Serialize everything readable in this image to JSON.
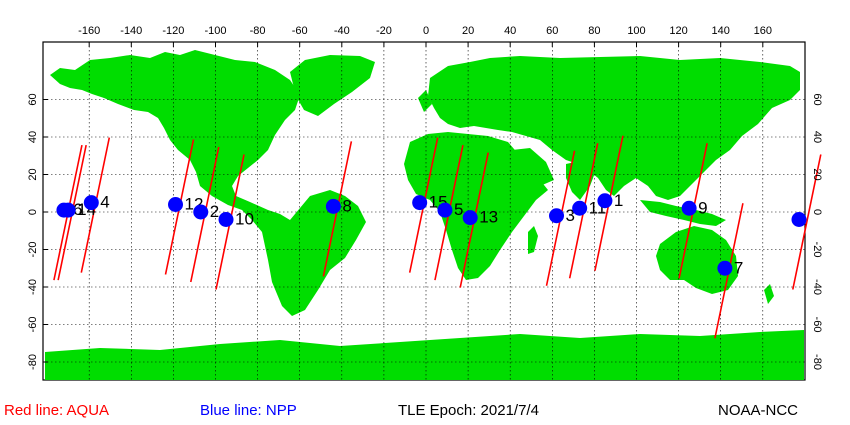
{
  "legend": {
    "aqua": "Red line: AQUA",
    "npp": "Blue line: NPP"
  },
  "tle_epoch": "TLE Epoch: 2021/7/4",
  "credit": "NOAA-NCC",
  "colors": {
    "ocean": "#ffffff",
    "land": "#00dd00",
    "aqua_track": "#ff0000",
    "npp_track": "#0000ff",
    "marker": "#0000ff",
    "grid": "#000000"
  },
  "axes": {
    "x_ticks": [
      -160,
      -140,
      -120,
      -100,
      -80,
      -60,
      -40,
      -20,
      0,
      20,
      40,
      60,
      80,
      100,
      120,
      140,
      160
    ],
    "y_ticks": [
      60,
      40,
      20,
      0,
      -20,
      -40,
      -60,
      -80
    ],
    "lon_range": [
      -180,
      180
    ],
    "lat_range": [
      -90,
      90
    ]
  },
  "passes": [
    {
      "label": "6",
      "lon": -172,
      "lat": 1
    },
    {
      "label": "14",
      "lon": -170,
      "lat": 1
    },
    {
      "label": "4",
      "lon": -159,
      "lat": 5
    },
    {
      "label": "12",
      "lon": -119,
      "lat": 4
    },
    {
      "label": "2",
      "lon": -107,
      "lat": 0
    },
    {
      "label": "10",
      "lon": -95,
      "lat": -4
    },
    {
      "label": "8",
      "lon": -44,
      "lat": 3
    },
    {
      "label": "15",
      "lon": -3,
      "lat": 5
    },
    {
      "label": "5",
      "lon": 9,
      "lat": 1
    },
    {
      "label": "13",
      "lon": 21,
      "lat": -3
    },
    {
      "label": "3",
      "lon": 62,
      "lat": -2
    },
    {
      "label": "11",
      "lon": 73,
      "lat": 2
    },
    {
      "label": "1",
      "lon": 85,
      "lat": 6
    },
    {
      "label": "9",
      "lon": 125,
      "lat": 2
    },
    {
      "label": "7",
      "lon": 142,
      "lat": -30
    },
    {
      "label": "",
      "lon": 179,
      "lat": -4
    }
  ]
}
